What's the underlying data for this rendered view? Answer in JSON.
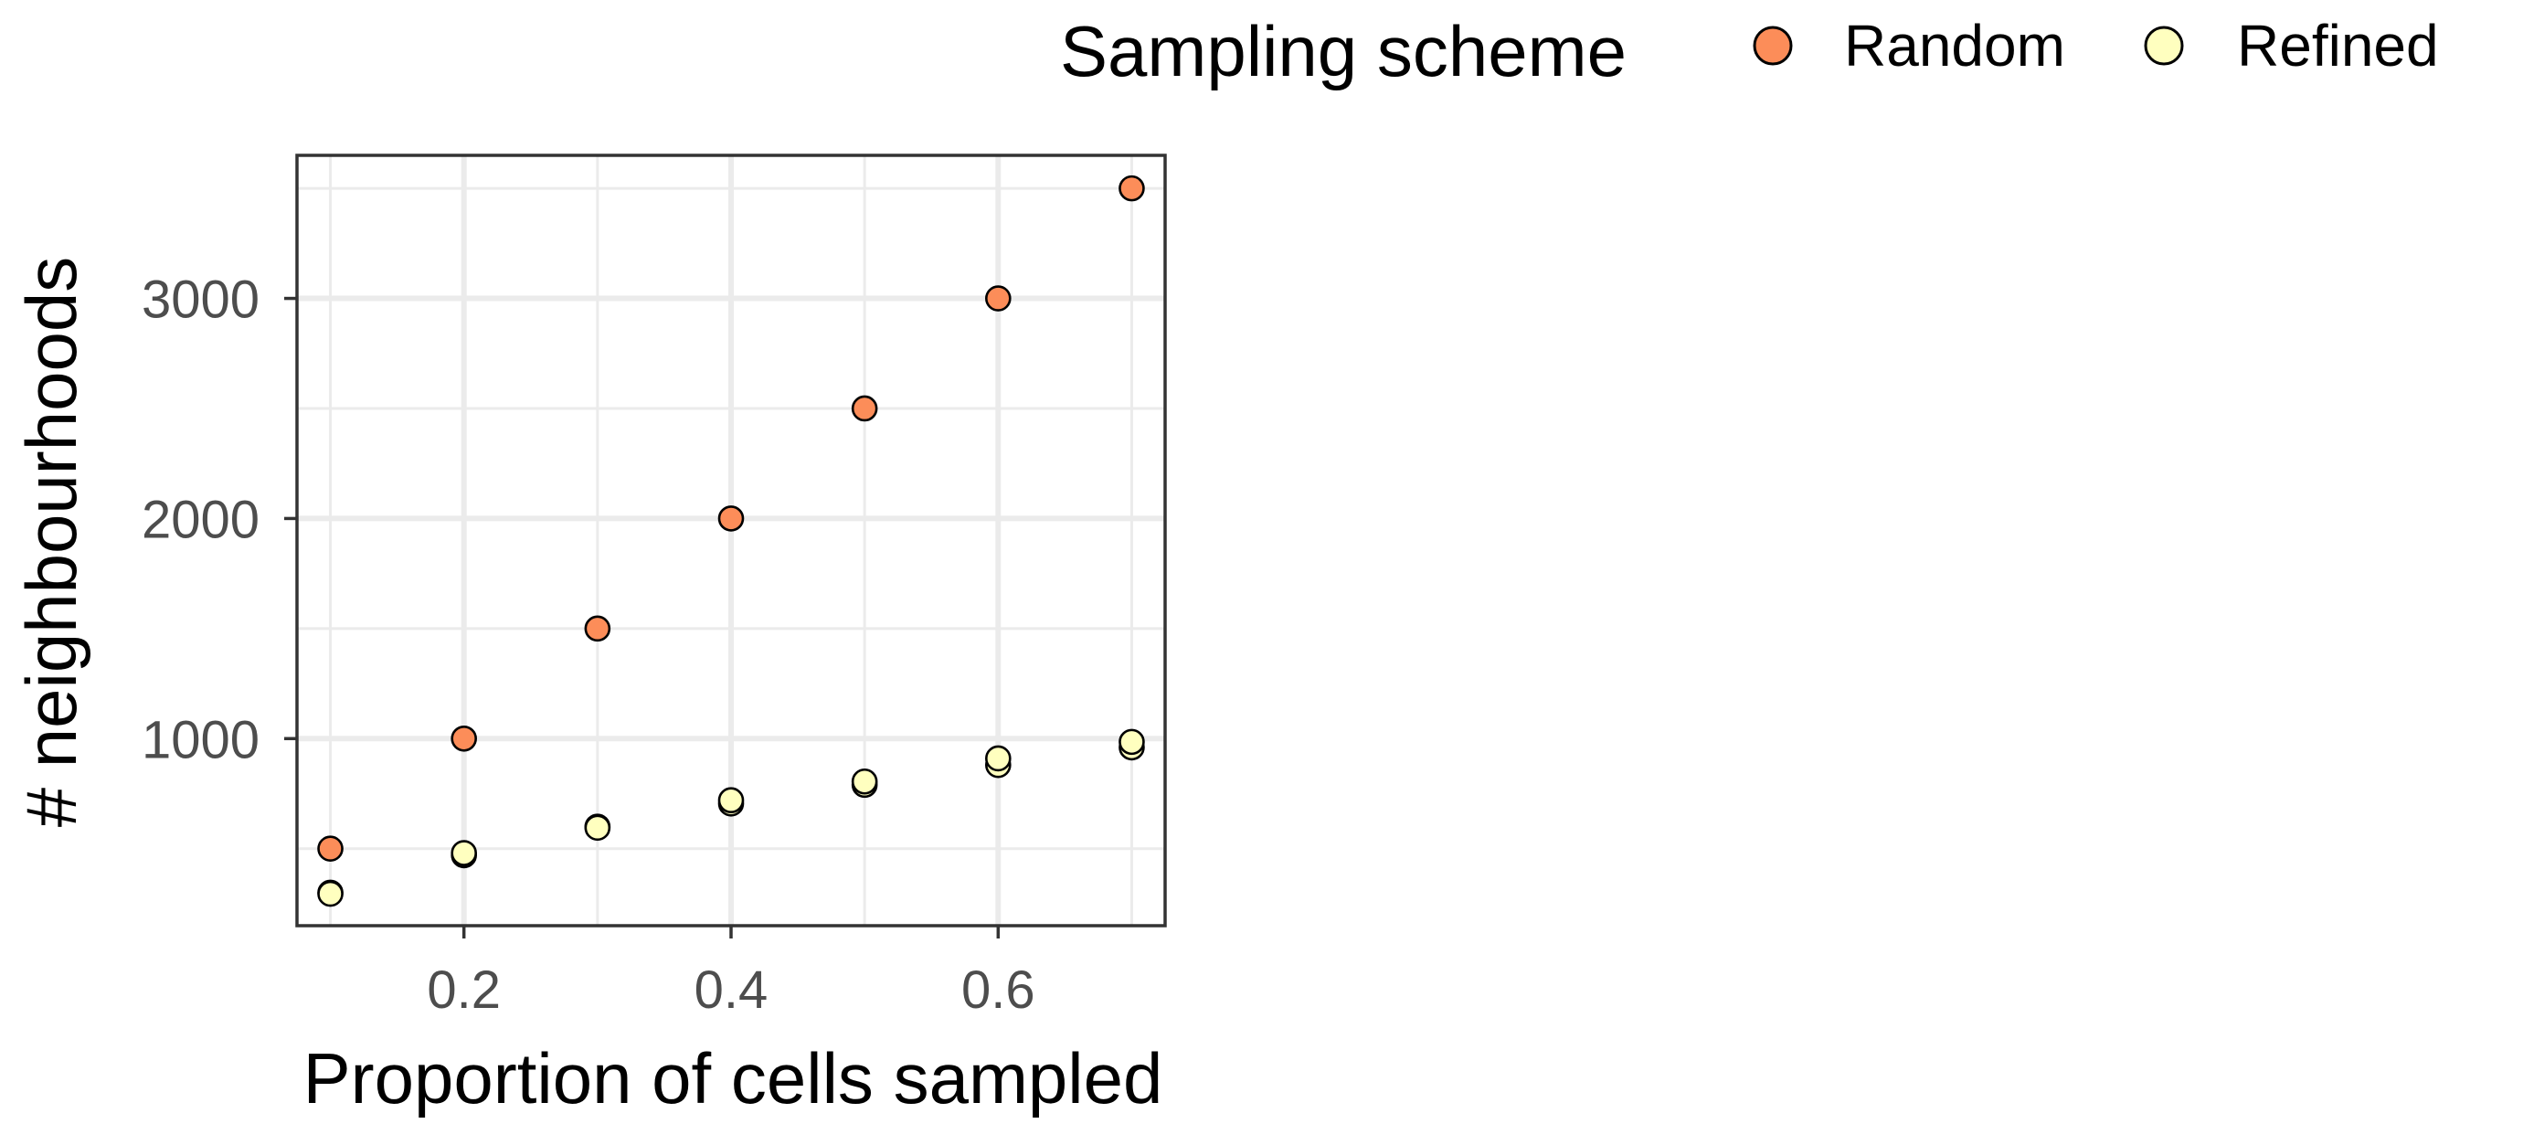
{
  "chart_data": {
    "type": "scatter",
    "title": "",
    "xlabel": "Proportion of cells sampled",
    "ylabel": "# neighbourhoods",
    "xlim": [
      0.075,
      0.725
    ],
    "ylim": [
      150,
      3650
    ],
    "xticks": [
      0.2,
      0.4,
      0.6
    ],
    "xtick_labels": [
      "0.2",
      "0.4",
      "0.6"
    ],
    "yticks": [
      1000,
      2000,
      3000
    ],
    "ytick_labels": [
      "1000",
      "2000",
      "3000"
    ],
    "x_minor_breaks": [
      0.1,
      0.3,
      0.5,
      0.7
    ],
    "y_minor_breaks": [
      500,
      1500,
      2500,
      3500
    ],
    "grid": true,
    "legend": {
      "title": "Sampling scheme",
      "position": "top-right"
    },
    "series": [
      {
        "name": "Random",
        "color": "#FC8D59",
        "points": [
          {
            "x": 0.1,
            "y": 500
          },
          {
            "x": 0.2,
            "y": 1000
          },
          {
            "x": 0.3,
            "y": 1500
          },
          {
            "x": 0.4,
            "y": 2000
          },
          {
            "x": 0.5,
            "y": 2500
          },
          {
            "x": 0.6,
            "y": 3000
          },
          {
            "x": 0.7,
            "y": 3500
          }
        ]
      },
      {
        "name": "Refined",
        "color": "#FFFFBF",
        "points": [
          {
            "x": 0.1,
            "y": 300
          },
          {
            "x": 0.1,
            "y": 295
          },
          {
            "x": 0.2,
            "y": 470
          },
          {
            "x": 0.2,
            "y": 480
          },
          {
            "x": 0.3,
            "y": 600
          },
          {
            "x": 0.3,
            "y": 595
          },
          {
            "x": 0.4,
            "y": 705
          },
          {
            "x": 0.4,
            "y": 720
          },
          {
            "x": 0.5,
            "y": 790
          },
          {
            "x": 0.5,
            "y": 805
          },
          {
            "x": 0.6,
            "y": 880
          },
          {
            "x": 0.6,
            "y": 910
          },
          {
            "x": 0.7,
            "y": 960
          },
          {
            "x": 0.7,
            "y": 985
          }
        ]
      }
    ]
  }
}
